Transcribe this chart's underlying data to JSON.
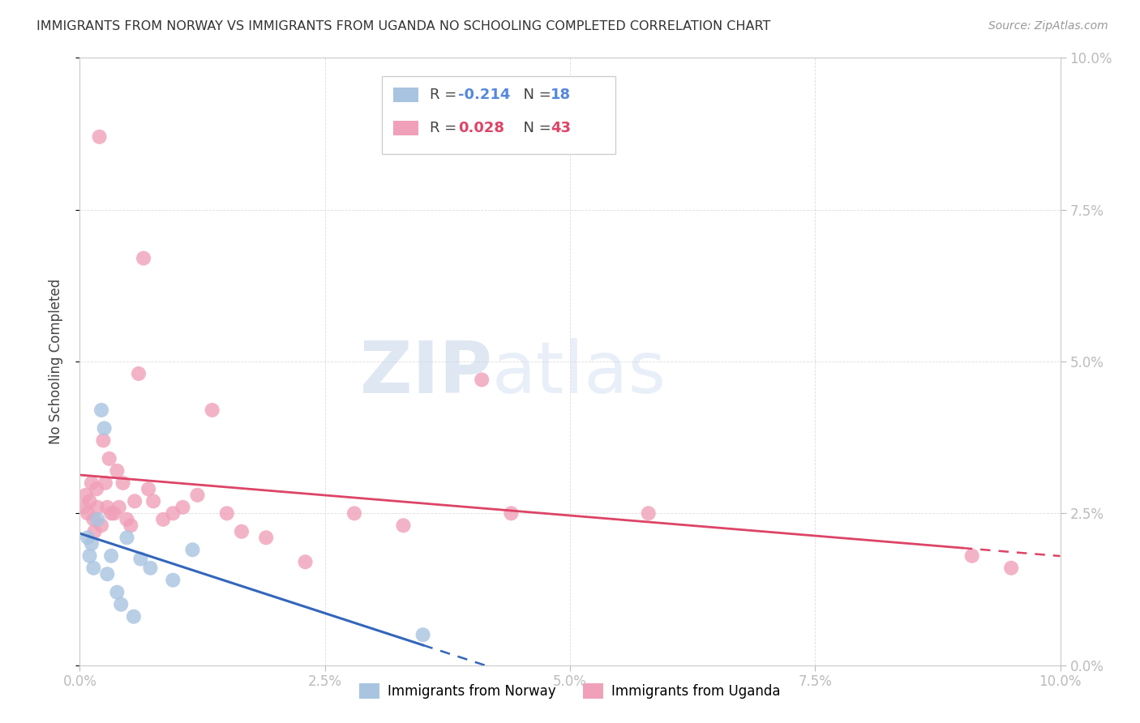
{
  "title": "IMMIGRANTS FROM NORWAY VS IMMIGRANTS FROM UGANDA NO SCHOOLING COMPLETED CORRELATION CHART",
  "source": "Source: ZipAtlas.com",
  "ylabel": "No Schooling Completed",
  "xlim": [
    0.0,
    10.0
  ],
  "ylim": [
    0.0,
    10.0
  ],
  "norway_R": -0.214,
  "norway_N": 18,
  "uganda_R": 0.028,
  "uganda_N": 43,
  "norway_color": "#a8c4e0",
  "uganda_color": "#f0a0b8",
  "norway_line_color": "#3366bb",
  "uganda_line_color": "#dd4466",
  "norway_solid_end": 3.5,
  "uganda_solid_end": 9.0,
  "norway_x": [
    0.08,
    0.1,
    0.12,
    0.14,
    0.18,
    0.22,
    0.25,
    0.28,
    0.32,
    0.38,
    0.42,
    0.48,
    0.55,
    0.62,
    0.72,
    0.95,
    1.15,
    3.5
  ],
  "norway_y": [
    2.1,
    1.8,
    2.0,
    1.6,
    2.4,
    4.2,
    3.9,
    1.5,
    1.8,
    1.2,
    1.0,
    2.1,
    0.8,
    1.75,
    1.6,
    1.4,
    1.9,
    0.5
  ],
  "uganda_x": [
    0.04,
    0.06,
    0.08,
    0.1,
    0.12,
    0.14,
    0.15,
    0.17,
    0.18,
    0.2,
    0.22,
    0.24,
    0.26,
    0.28,
    0.3,
    0.32,
    0.35,
    0.38,
    0.4,
    0.44,
    0.48,
    0.52,
    0.56,
    0.6,
    0.65,
    0.7,
    0.75,
    0.85,
    0.95,
    1.05,
    1.2,
    1.35,
    1.5,
    1.65,
    1.9,
    2.3,
    2.8,
    3.3,
    4.1,
    4.4,
    5.8,
    9.1,
    9.5
  ],
  "uganda_y": [
    2.6,
    2.8,
    2.5,
    2.7,
    3.0,
    2.4,
    2.2,
    2.9,
    2.6,
    8.7,
    2.3,
    3.7,
    3.0,
    2.6,
    3.4,
    2.5,
    2.5,
    3.2,
    2.6,
    3.0,
    2.4,
    2.3,
    2.7,
    4.8,
    6.7,
    2.9,
    2.7,
    2.4,
    2.5,
    2.6,
    2.8,
    4.2,
    2.5,
    2.2,
    2.1,
    1.7,
    2.5,
    2.3,
    4.7,
    2.5,
    2.5,
    1.8,
    1.6
  ],
  "watermark_zip": "ZIP",
  "watermark_atlas": "atlas",
  "background_color": "#ffffff"
}
